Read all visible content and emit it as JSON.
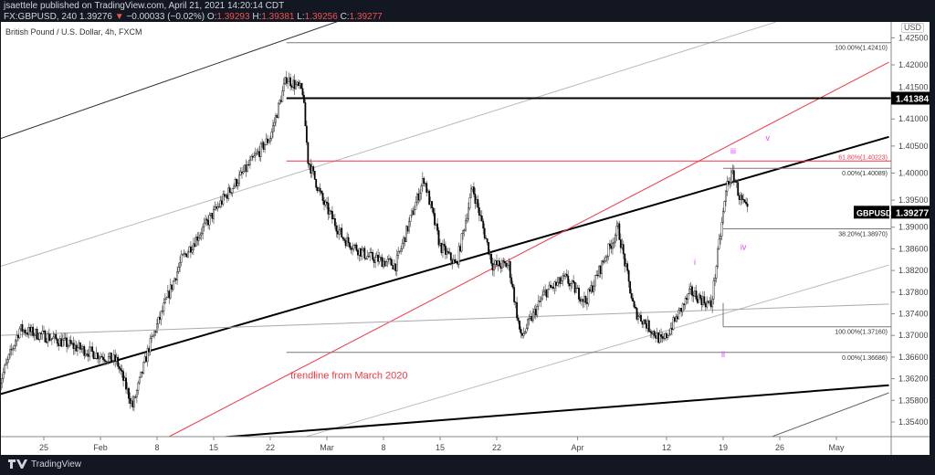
{
  "header": {
    "publisher": "jsaettele published on TradingView.com, April 21, 2021 14:20:14 CDT",
    "symbol": "FX:GBPUSD, 240",
    "last": "1.39276",
    "change": "−0.00033 (−0.02%)",
    "open_label": "O:",
    "open": "1.39293",
    "high_label": "H:",
    "high": "1.39381",
    "low_label": "L:",
    "low": "1.39256",
    "close_label": "C:",
    "close": "1.39277"
  },
  "chart_title": "British Pound / U.S. Dollar, 4h, FXCM",
  "currency": "USD",
  "footer": {
    "brand": "TradingView"
  },
  "chart_data": {
    "type": "candlestick",
    "symbol": "GBPUSD",
    "ylim": [
      1.352,
      1.4275
    ],
    "y_ticks": [
      "1.42500",
      "1.42000",
      "1.41500",
      "1.41000",
      "1.40500",
      "1.40000",
      "1.39500",
      "1.39000",
      "1.38600",
      "1.38200",
      "1.37800",
      "1.37400",
      "1.37000",
      "1.36600",
      "1.36200",
      "1.35800",
      "1.35400"
    ],
    "x_ticks": [
      {
        "label": "25",
        "date": "2021-01-25"
      },
      {
        "label": "Feb",
        "date": "2021-02-01"
      },
      {
        "label": "8",
        "date": "2021-02-08"
      },
      {
        "label": "15",
        "date": "2021-02-15"
      },
      {
        "label": "22",
        "date": "2021-02-22"
      },
      {
        "label": "Mar",
        "date": "2021-03-01"
      },
      {
        "label": "8",
        "date": "2021-03-08"
      },
      {
        "label": "15",
        "date": "2021-03-15"
      },
      {
        "label": "22",
        "date": "2021-03-22"
      },
      {
        "label": "Apr",
        "date": "2021-04-01"
      },
      {
        "label": "12",
        "date": "2021-04-12"
      },
      {
        "label": "19",
        "date": "2021-04-19"
      },
      {
        "label": "26",
        "date": "2021-04-26"
      },
      {
        "label": "May",
        "date": "2021-05-03"
      }
    ],
    "price_path": [
      [
        "2021-01-19T12:00",
        1.3611
      ],
      [
        "2021-01-22T00:00",
        1.3712
      ],
      [
        "2021-01-26T00:00",
        1.3695
      ],
      [
        "2021-01-29T00:00",
        1.3678
      ],
      [
        "2021-02-03T00:00",
        1.3653
      ],
      [
        "2021-02-05T00:00",
        1.3569
      ],
      [
        "2021-02-07T00:00",
        1.3678
      ],
      [
        "2021-02-11T00:00",
        1.3839
      ],
      [
        "2021-02-16T00:00",
        1.3948
      ],
      [
        "2021-02-22T00:00",
        1.4067
      ],
      [
        "2021-02-24T00:00",
        1.4176
      ],
      [
        "2021-02-26T00:00",
        1.4151
      ],
      [
        "2021-02-26T16:00",
        1.4024
      ],
      [
        "2021-02-28T12:00",
        1.3948
      ],
      [
        "2021-03-03T00:00",
        1.388
      ],
      [
        "2021-03-06T00:00",
        1.3846
      ],
      [
        "2021-03-09T12:00",
        1.383
      ],
      [
        "2021-03-13T00:00",
        1.3991
      ],
      [
        "2021-03-15T00:00",
        1.3865
      ],
      [
        "2021-03-17T00:00",
        1.383
      ],
      [
        "2021-03-19T00:00",
        1.3974
      ],
      [
        "2021-03-21T12:00",
        1.383
      ],
      [
        "2021-03-23T12:00",
        1.383
      ],
      [
        "2021-03-25T00:00",
        1.3695
      ],
      [
        "2021-03-28T00:00",
        1.378
      ],
      [
        "2021-03-30T12:00",
        1.3805
      ],
      [
        "2021-04-02T00:00",
        1.3763
      ],
      [
        "2021-04-06T00:00",
        1.3898
      ],
      [
        "2021-04-08T00:00",
        1.3746
      ],
      [
        "2021-04-11T12:00",
        1.3687
      ],
      [
        "2021-04-15T00:00",
        1.378
      ],
      [
        "2021-04-17T12:00",
        1.3755
      ],
      [
        "2021-04-19T12:00",
        1.3982
      ],
      [
        "2021-04-20T06:00",
        1.3999
      ],
      [
        "2021-04-21T00:00",
        1.3957
      ],
      [
        "2021-04-22T00:00",
        1.3928
      ]
    ],
    "last_price": {
      "label": "GBPUSD",
      "value": "1.39277"
    },
    "horizontal_levels": [
      {
        "value": 1.41384,
        "label": "1.41384",
        "from": "2021-02-24",
        "color": "#000000",
        "marked": true
      },
      {
        "value": 1.4241,
        "label": "100.00%(1.42410)",
        "from": "2021-02-24",
        "color": "#787878"
      },
      {
        "value": 1.40223,
        "label": "61.80%(1.40223)",
        "from": "2021-02-24",
        "color": "#f23645"
      },
      {
        "value": 1.40089,
        "label": "0.00%(1.40089)",
        "from": "2021-04-19",
        "color": "#787878"
      },
      {
        "value": 1.3897,
        "label": "38.20%(1.38970)",
        "from": "2021-04-19",
        "color": "#787878"
      },
      {
        "value": 1.3716,
        "label": "100.00%(1.37160)",
        "from": "2021-04-19",
        "color": "#787878"
      },
      {
        "value": 1.36686,
        "label": "0.00%(1.36686)",
        "from": "2021-02-24",
        "color": "#787878"
      }
    ],
    "trendlines": [
      {
        "p1": [
          "2021-01-19T12:00",
          1.4063
        ],
        "p2": [
          "2021-03-10T00:00",
          1.432
        ],
        "color": "#333333",
        "width": 1
      },
      {
        "p1": [
          "2021-01-19T12:00",
          1.3827
        ],
        "p2": [
          "2021-04-25T12:00",
          1.4279
        ],
        "color": "#bbbbbb",
        "width": 1
      },
      {
        "p1": [
          "2021-01-19T12:00",
          1.3591
        ],
        "p2": [
          "2021-05-09T12:00",
          1.4067
        ],
        "color": "#000000",
        "width": 2
      },
      {
        "p1": [
          "2021-02-09T12:00",
          1.3513
        ],
        "p2": [
          "2021-05-09T12:00",
          1.4205
        ],
        "color": "#f23645",
        "width": 1
      },
      {
        "p1": [
          "2021-02-25T18:00",
          1.351
        ],
        "p2": [
          "2021-05-09T12:00",
          1.383
        ],
        "color": "#bbbbbb",
        "width": 1
      },
      {
        "p1": [
          "2021-01-19T12:00",
          1.37
        ],
        "p2": [
          "2021-05-09T12:00",
          1.3758
        ],
        "color": "#aaaaaa",
        "width": 1
      },
      {
        "p1": [
          "2021-02-14T12:00",
          1.351
        ],
        "p2": [
          "2021-05-09T12:00",
          1.3608
        ],
        "color": "#000000",
        "width": 2
      },
      {
        "p1": [
          "2021-04-24T12:00",
          1.351
        ],
        "p2": [
          "2021-05-09T12:00",
          1.3594
        ],
        "color": "#666666",
        "width": 1
      }
    ],
    "wave_labels": [
      {
        "text": "i",
        "date": "2021-04-15T12:00",
        "price": 1.383
      },
      {
        "text": "ii",
        "date": "2021-04-19T00:00",
        "price": 1.366
      },
      {
        "text": "iii",
        "date": "2021-04-20T06:00",
        "price": 1.4035
      },
      {
        "text": "iv",
        "date": "2021-04-21T12:00",
        "price": 1.3858
      },
      {
        "text": "v",
        "date": "2021-04-24T12:00",
        "price": 1.406
      }
    ],
    "annotation": {
      "text": "trendline from March 2020",
      "date": "2021-02-24T12:00",
      "price": 1.362,
      "color": "#f23645"
    },
    "wave_color": "#e040fb"
  }
}
